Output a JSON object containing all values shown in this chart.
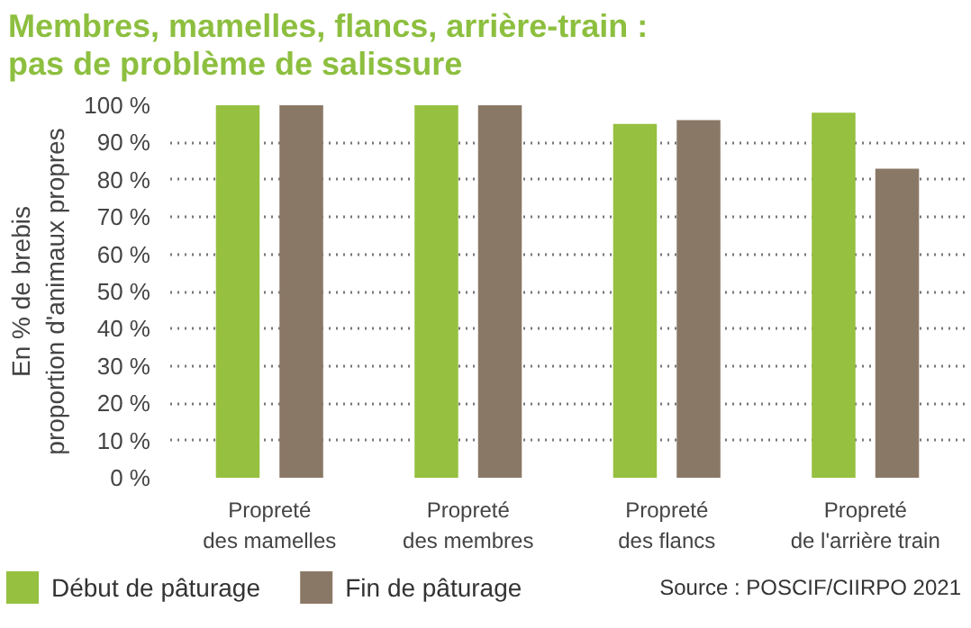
{
  "chart_data": {
    "type": "bar",
    "title": "Membres, mamelles, flancs, arrière-train :\npas de problème de salissure",
    "ylabel": "En % de brebis\nproportion d'animaux propres",
    "categories": [
      "Propreté\ndes mamelles",
      "Propreté\ndes membres",
      "Propreté\ndes flancs",
      "Propreté\nde l'arrière train"
    ],
    "series": [
      {
        "name": "Début de pâturage",
        "color": "#96c03f",
        "values": [
          100,
          100,
          95,
          98
        ]
      },
      {
        "name": "Fin de pâturage",
        "color": "#8a7866",
        "values": [
          100,
          100,
          96,
          83
        ]
      }
    ],
    "ylim": [
      0,
      100
    ],
    "yticks": [
      {
        "value": 0,
        "label": "0 %"
      },
      {
        "value": 10,
        "label": "10 %"
      },
      {
        "value": 20,
        "label": "20 %"
      },
      {
        "value": 30,
        "label": "30 %"
      },
      {
        "value": 40,
        "label": "40 %"
      },
      {
        "value": 50,
        "label": "50 %"
      },
      {
        "value": 60,
        "label": "60 %"
      },
      {
        "value": 70,
        "label": "70 %"
      },
      {
        "value": 80,
        "label": "80 %"
      },
      {
        "value": 90,
        "label": "90 %"
      },
      {
        "value": 100,
        "label": "100 %"
      }
    ],
    "grid": "y",
    "legend": "bottom",
    "annotations": [
      "Source : POSCIF/CIIRPO 2021"
    ]
  }
}
